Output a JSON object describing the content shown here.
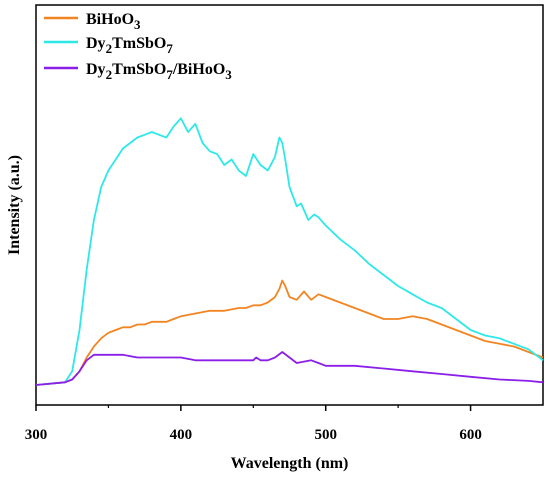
{
  "chart_data": {
    "type": "line",
    "title": "",
    "xlabel": "Wavelength (nm)",
    "ylabel": "Intensity (a.u.)",
    "xlim": [
      300,
      650
    ],
    "ylim": [
      0,
      100
    ],
    "x_ticks": [
      300,
      400,
      500,
      600
    ],
    "y_ticks_shown": false,
    "grid": false,
    "legend_position": "top-left",
    "series": [
      {
        "name_main": "BiHoO",
        "name_sub": "3",
        "color": "#F28522",
        "x": [
          320,
          325,
          330,
          335,
          340,
          345,
          350,
          355,
          360,
          365,
          370,
          375,
          380,
          385,
          390,
          395,
          400,
          410,
          420,
          430,
          440,
          445,
          450,
          455,
          460,
          465,
          468,
          470,
          472,
          475,
          480,
          485,
          490,
          495,
          500,
          510,
          520,
          530,
          540,
          550,
          560,
          570,
          580,
          590,
          600,
          610,
          620,
          630,
          640,
          650
        ],
        "y": [
          1,
          2,
          5,
          10,
          14,
          17,
          19,
          20,
          21,
          21,
          22,
          22,
          23,
          23,
          23,
          24,
          25,
          26,
          27,
          27,
          28,
          28,
          29,
          29,
          30,
          32,
          35,
          38,
          36,
          32,
          31,
          34,
          31,
          33,
          32,
          30,
          28,
          26,
          24,
          24,
          25,
          24,
          22,
          20,
          18,
          16,
          15,
          14,
          12,
          10
        ]
      },
      {
        "name_main": "Dy",
        "name_sub": "2",
        "name_tail": "TmSbO",
        "name_sub2": "7",
        "color": "#2EE8E8",
        "x": [
          320,
          325,
          330,
          335,
          340,
          345,
          350,
          355,
          360,
          365,
          370,
          375,
          380,
          385,
          390,
          395,
          400,
          405,
          410,
          415,
          420,
          425,
          430,
          435,
          440,
          445,
          450,
          455,
          460,
          465,
          468,
          470,
          472,
          475,
          480,
          483,
          488,
          492,
          495,
          500,
          510,
          520,
          530,
          540,
          550,
          560,
          570,
          580,
          590,
          600,
          610,
          620,
          630,
          640,
          650
        ],
        "y": [
          1,
          5,
          20,
          42,
          60,
          72,
          78,
          82,
          86,
          88,
          90,
          91,
          92,
          91,
          90,
          94,
          97,
          92,
          95,
          88,
          85,
          84,
          80,
          82,
          78,
          76,
          84,
          80,
          78,
          83,
          90,
          88,
          82,
          72,
          65,
          66,
          60,
          62,
          61,
          58,
          53,
          49,
          44,
          40,
          36,
          33,
          30,
          28,
          24,
          20,
          18,
          17,
          15,
          13,
          9
        ]
      },
      {
        "name_main": "Dy",
        "name_sub": "2",
        "name_tail": "TmSbO",
        "name_sub2": "7",
        "name_tail2": "/BiHoO",
        "name_sub3": "3",
        "color": "#8B1FE8",
        "x": [
          320,
          325,
          330,
          335,
          340,
          345,
          350,
          360,
          370,
          380,
          390,
          400,
          410,
          420,
          430,
          440,
          450,
          452,
          455,
          460,
          465,
          470,
          475,
          480,
          490,
          495,
          500,
          520,
          540,
          560,
          580,
          600,
          620,
          640,
          650
        ],
        "y": [
          1,
          2,
          5,
          9,
          11,
          11,
          11,
          11,
          10,
          10,
          10,
          10,
          9,
          9,
          9,
          9,
          9,
          10,
          9,
          9,
          10,
          12,
          10,
          8,
          9,
          8,
          7,
          7,
          6,
          5,
          4,
          3,
          2,
          1.5,
          1
        ]
      }
    ]
  }
}
